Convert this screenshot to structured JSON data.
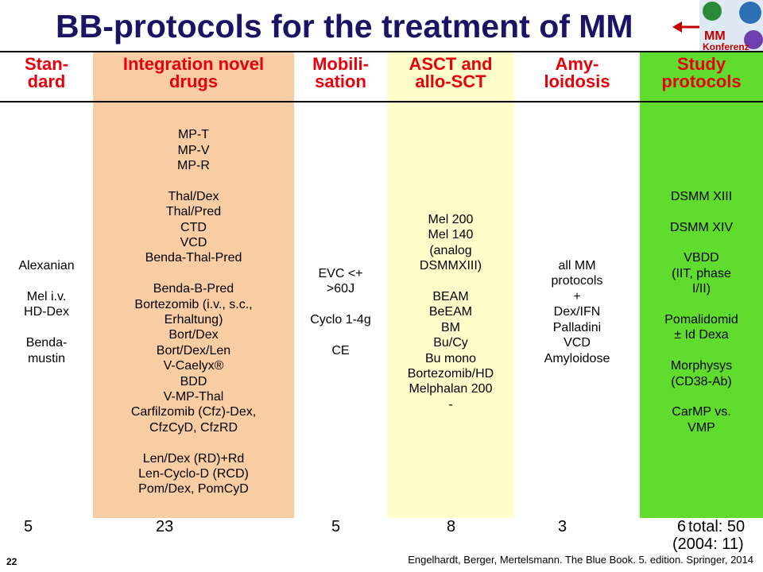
{
  "title": "BB-protocols for the treatment of MM",
  "logo": {
    "line1": "MM",
    "line2": "Konferenz"
  },
  "columns": [
    {
      "header": [
        "Stan-",
        "dard"
      ],
      "groups": [
        [
          "Alexanian"
        ],
        [
          "Mel i.v.",
          "HD-Dex"
        ],
        [
          "Benda-",
          "mustin"
        ]
      ],
      "count": "5"
    },
    {
      "header": [
        "Integration novel",
        "drugs"
      ],
      "groups": [
        [
          "MP-T",
          "MP-V",
          "MP-R"
        ],
        [
          "Thal/Dex",
          "Thal/Pred",
          "CTD",
          "VCD",
          "Benda-Thal-Pred"
        ],
        [
          "Benda-B-Pred",
          "Bortezomib (i.v., s.c.,",
          "Erhaltung)",
          "Bort/Dex",
          "Bort/Dex/Len",
          "V-Caelyx®",
          "BDD",
          "V-MP-Thal",
          "Carfilzomib (Cfz)-Dex,",
          "CfzCyD, CfzRD"
        ],
        [
          "Len/Dex (RD)+Rd",
          "Len-Cyclo-D (RCD)",
          "Pom/Dex, PomCyD"
        ]
      ],
      "count": "23"
    },
    {
      "header": [
        "Mobili-",
        "sation"
      ],
      "groups": [
        [
          "EVC <+",
          ">60J"
        ],
        [
          "Cyclo 1-4g"
        ],
        [
          "CE"
        ]
      ],
      "count": "5"
    },
    {
      "header": [
        "ASCT and",
        "allo-SCT"
      ],
      "groups": [
        [
          "Mel 200",
          "Mel 140",
          "(analog",
          "DSMMXIII)"
        ],
        [
          "BEAM",
          "BeEAM",
          "BM",
          "Bu/Cy",
          "Bu mono",
          "Bortezomib/HD",
          "Melphalan 200",
          "-"
        ]
      ],
      "count": "8"
    },
    {
      "header": [
        "Amy-",
        "loidosis"
      ],
      "groups": [
        [
          "all MM",
          "protocols",
          "+",
          "Dex/IFN",
          "Palladini",
          "VCD",
          "Amyloidose"
        ]
      ],
      "count": "3"
    },
    {
      "header": [
        "Study",
        "protocols"
      ],
      "groups": [
        [
          "DSMM XIII"
        ],
        [
          "DSMM XIV"
        ],
        [
          "VBDD",
          "(IIT, phase",
          "I/II)"
        ],
        [
          "Pomalidomid",
          "± Id Dexa"
        ],
        [
          "Morphysys",
          "(CD38-Ab)"
        ],
        [
          "CarMP vs.",
          "VMP"
        ]
      ],
      "count": "6"
    }
  ],
  "total": "total: 50",
  "previous": "(2004: 11)",
  "citation": "Engelhardt, Berger, Mertelsmann. The Blue Book. 5. edition. Springer, 2014",
  "page_number": "22"
}
